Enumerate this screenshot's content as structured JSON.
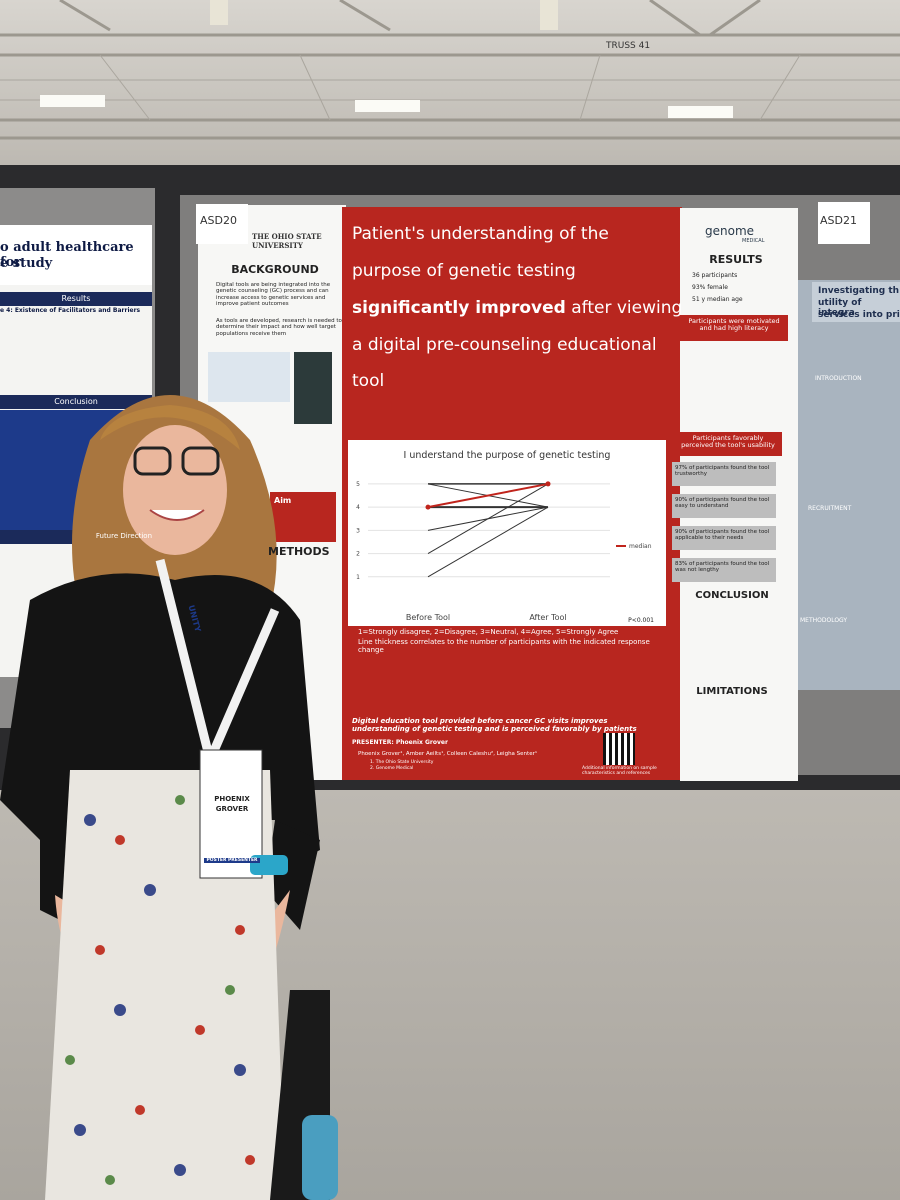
{
  "ceiling": {
    "truss_label": "TRUSS 41"
  },
  "far_left_poster": {
    "title_lines": [
      "o adult healthcare for",
      "e study"
    ],
    "results": "Results",
    "theme": "e 4: Existence of Facilitators and Barriers",
    "conclusion": "Conclusion",
    "future": "Future Direction"
  },
  "left_poster": {
    "tag": "ASD20",
    "university": "THE OHIO STATE UNIVERSITY",
    "background_heading": "BACKGROUND",
    "background_bullets": [
      "Digital tools are being integrated into the genetic counseling (GC) process and can increase access to genetic services and improve patient outcomes",
      "As tools are developed, research is needed to determine their impact and how well target populations receive them"
    ],
    "aim_heading": "Aim",
    "methods_heading": "METHODS"
  },
  "center_poster": {
    "title_lines": [
      {
        "text": "Patient's understanding of the",
        "bold": false
      },
      {
        "text": "purpose of genetic testing",
        "bold": false
      },
      {
        "text": "significantly improved",
        "bold": true,
        "rest": " after viewing"
      },
      {
        "text": "a digital pre-counseling educational",
        "bold": false
      },
      {
        "text": "tool",
        "bold": false
      }
    ],
    "chart": {
      "type": "line",
      "title": "I understand the purpose of genetic testing",
      "categories": [
        "Before Tool",
        "After Tool"
      ],
      "ylim": [
        0,
        5.6
      ],
      "yticks": [
        1,
        2,
        3,
        4,
        5
      ],
      "lines": [
        {
          "values": [
            5,
            4
          ],
          "width": 1
        },
        {
          "values": [
            1,
            4
          ],
          "width": 1
        },
        {
          "values": [
            2,
            5
          ],
          "width": 1
        },
        {
          "values": [
            3,
            4
          ],
          "width": 1
        },
        {
          "values": [
            4,
            4
          ],
          "width": 2
        },
        {
          "values": [
            5,
            5
          ],
          "width": 1.5
        }
      ],
      "series": [
        {
          "name": "median",
          "color": "#c0241c",
          "values": [
            4,
            5
          ]
        }
      ],
      "p_value": "P<0.001"
    },
    "scale_note": "1=Strongly disagree, 2=Disagree, 3=Neutral, 4=Agree, 5=Strongly Agree",
    "thickness_note": "Line thickness correlates to the number of participants with the indicated response change",
    "conclusion": "Digital education tool provided before cancer GC visits improves understanding of genetic testing and is perceived favorably by patients",
    "presenter": "PRESENTER: Phoenix Grover",
    "authors": "Phoenix Grover¹, Amber Aeilts¹, Colleen Caleshu², Leigha Senter¹",
    "affiliations": [
      "1. The Ohio State University",
      "2. Genome Medical"
    ],
    "qr_note": "Additional information on sample characteristics and references"
  },
  "right_poster": {
    "brand_top": "genome",
    "brand_bottom": "MEDICAL",
    "results_heading": "RESULTS",
    "stats": [
      "36 participants",
      "93% female",
      "51 y median age"
    ],
    "banner_1": "Participants were motivated and had high literacy",
    "banner_2": "Participants favorably perceived the tool's usability",
    "boxes": [
      "97% of participants found the tool trustworthy",
      "90% of participants found the tool easy to understand",
      "90% of participants found the tool applicable to their needs",
      "83% of participants found the tool was not lengthy"
    ],
    "conclusion_heading": "CONCLUSION",
    "limitations_heading": "LIMITATIONS",
    "tag": "ASD21"
  },
  "far_right_poster": {
    "title_lines": [
      "Investigating th",
      "utility of integra",
      "services into pri"
    ],
    "introduction": "INTRODUCTION",
    "recruitment": "RECRUITMENT",
    "methodology": "METHODOLOGY"
  },
  "badge": {
    "first_name": "PHOENIX",
    "last_name": "GROVER",
    "role": "POSTER PRESENTER",
    "lanyard": "UNITY"
  }
}
